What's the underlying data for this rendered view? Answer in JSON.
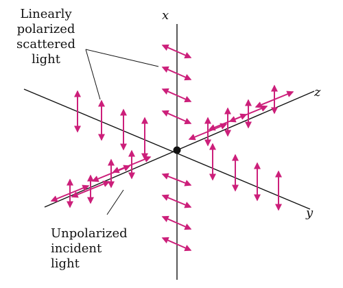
{
  "axes": {
    "x": "x",
    "y": "y",
    "z": "z"
  },
  "scattered_label": [
    "Linearly",
    "polarized",
    "scattered",
    "light"
  ],
  "incident_label": [
    "Unpolarized",
    "incident",
    "light"
  ],
  "colors": {
    "arrow": "#cc1f7a",
    "axis": "#111111",
    "background": "#ffffff"
  },
  "icons": {
    "origin": "scattering-center-dot"
  }
}
